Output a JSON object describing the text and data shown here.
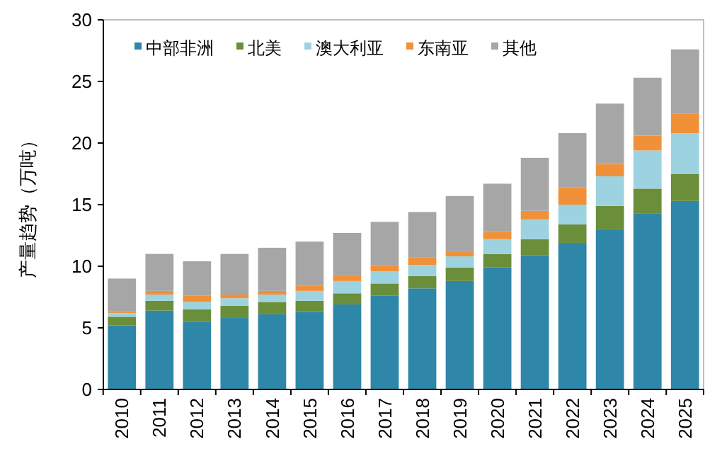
{
  "chart_data": {
    "type": "bar",
    "stacked": true,
    "ylabel": "产量趋势（万吨）",
    "categories": [
      "2010",
      "2011",
      "2012",
      "2013",
      "2014",
      "2015",
      "2016",
      "2017",
      "2018",
      "2019",
      "2020",
      "2021",
      "2022",
      "2023",
      "2024",
      "2025"
    ],
    "series": [
      {
        "name": "中部非洲",
        "color": "#2e86a8",
        "values": [
          5.2,
          6.4,
          5.5,
          5.8,
          6.1,
          6.3,
          6.9,
          7.6,
          8.2,
          8.8,
          9.9,
          10.9,
          11.9,
          13.0,
          14.3,
          15.3
        ]
      },
      {
        "name": "北美",
        "color": "#6b8e3a",
        "values": [
          0.7,
          0.8,
          1.0,
          1.0,
          1.0,
          0.9,
          0.9,
          1.0,
          1.0,
          1.1,
          1.1,
          1.3,
          1.5,
          1.9,
          2.0,
          2.2
        ]
      },
      {
        "name": "澳大利亚",
        "color": "#9dd3e0",
        "values": [
          0.3,
          0.5,
          0.6,
          0.6,
          0.6,
          0.8,
          1.0,
          1.0,
          0.9,
          0.9,
          1.2,
          1.6,
          1.6,
          2.4,
          3.1,
          3.3
        ]
      },
      {
        "name": "东南亚",
        "color": "#f0913a",
        "values": [
          0.1,
          0.3,
          0.5,
          0.3,
          0.3,
          0.4,
          0.4,
          0.5,
          0.6,
          0.4,
          0.6,
          0.7,
          1.4,
          1.0,
          1.2,
          1.6
        ]
      },
      {
        "name": "其他",
        "color": "#a6a6a6",
        "values": [
          2.7,
          3.0,
          2.8,
          3.3,
          3.5,
          3.6,
          3.5,
          3.5,
          3.7,
          4.5,
          3.9,
          4.3,
          4.4,
          4.9,
          4.7,
          5.2
        ]
      }
    ],
    "ylim": [
      0,
      30
    ],
    "yticks": [
      0,
      5,
      10,
      15,
      20,
      25,
      30
    ],
    "grid": false,
    "legend": "top"
  }
}
